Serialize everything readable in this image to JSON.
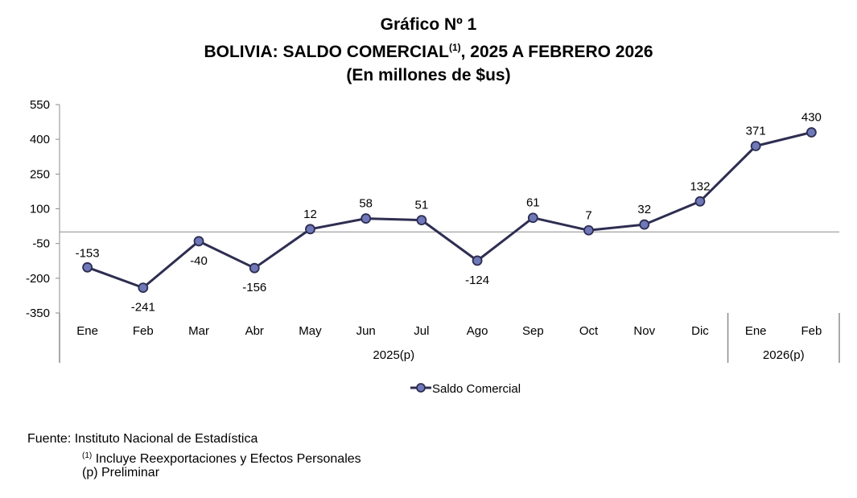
{
  "title": {
    "line1": "Gráfico Nº 1",
    "line2_main": "BOLIVIA: SALDO COMERCIAL",
    "line2_sup": "(1)",
    "line2_rest": ", 2025 A FEBRERO 2026",
    "line3": "(En millones de $us)"
  },
  "chart_data": {
    "type": "line",
    "title": "BOLIVIA: SALDO COMERCIAL(1), 2025 A FEBRERO 2026",
    "subtitle": "(En millones de $us)",
    "categories": [
      "Ene",
      "Feb",
      "Mar",
      "Abr",
      "May",
      "Jun",
      "Jul",
      "Ago",
      "Sep",
      "Oct",
      "Nov",
      "Dic",
      "Ene",
      "Feb"
    ],
    "groups": [
      {
        "label": "2025(p)",
        "start": 0,
        "end": 11
      },
      {
        "label": "2026(p)",
        "start": 12,
        "end": 13
      }
    ],
    "series": [
      {
        "name": "Saldo Comercial",
        "values": [
          -153,
          -241,
          -40,
          -156,
          12,
          58,
          51,
          -124,
          61,
          7,
          32,
          132,
          371,
          430
        ],
        "color": "#2e2e52",
        "marker_color": "#6f78b8"
      }
    ],
    "y_ticks": [
      "550",
      "400",
      "250",
      "100",
      "-50",
      "-200",
      "-350"
    ],
    "ylim": [
      -350,
      550
    ],
    "grid": false,
    "legend_position": "bottom-center"
  },
  "footer": {
    "source": "Fuente: Instituto Nacional de Estadística",
    "note_sup": "(1)",
    "note_text": "Incluye Reexportaciones y Efectos Personales",
    "preliminary": "(p) Preliminar"
  }
}
